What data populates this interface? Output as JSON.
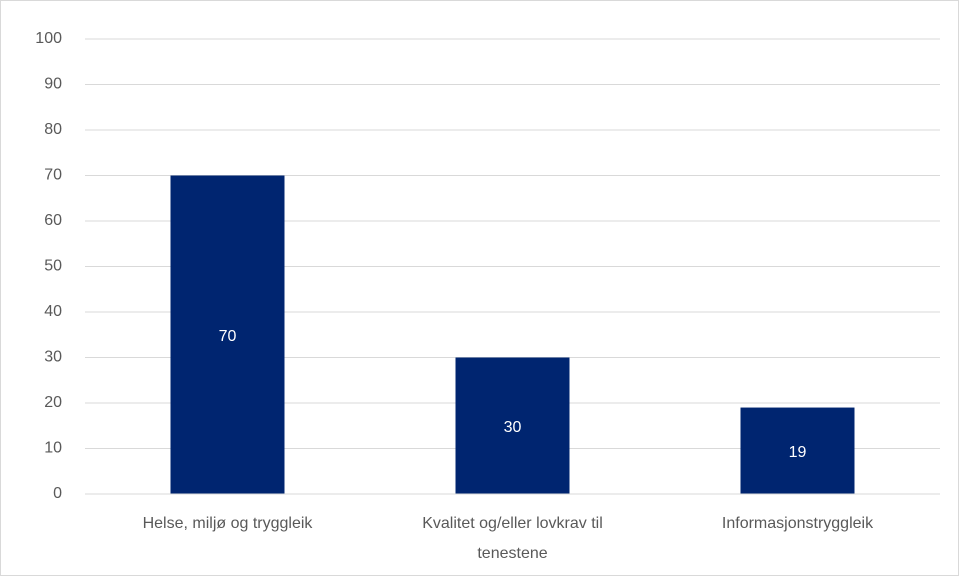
{
  "chart_data": {
    "type": "bar",
    "categories": [
      "Helse, miljø og tryggleik",
      "Kvalitet og/eller lovkrav til tenestene",
      "Informasjonstryggleik"
    ],
    "values": [
      70,
      30,
      19
    ],
    "color": "#002570",
    "ylim": [
      0,
      100
    ],
    "yticks": [
      0,
      10,
      20,
      30,
      40,
      50,
      60,
      70,
      80,
      90,
      100
    ],
    "grid": true
  }
}
